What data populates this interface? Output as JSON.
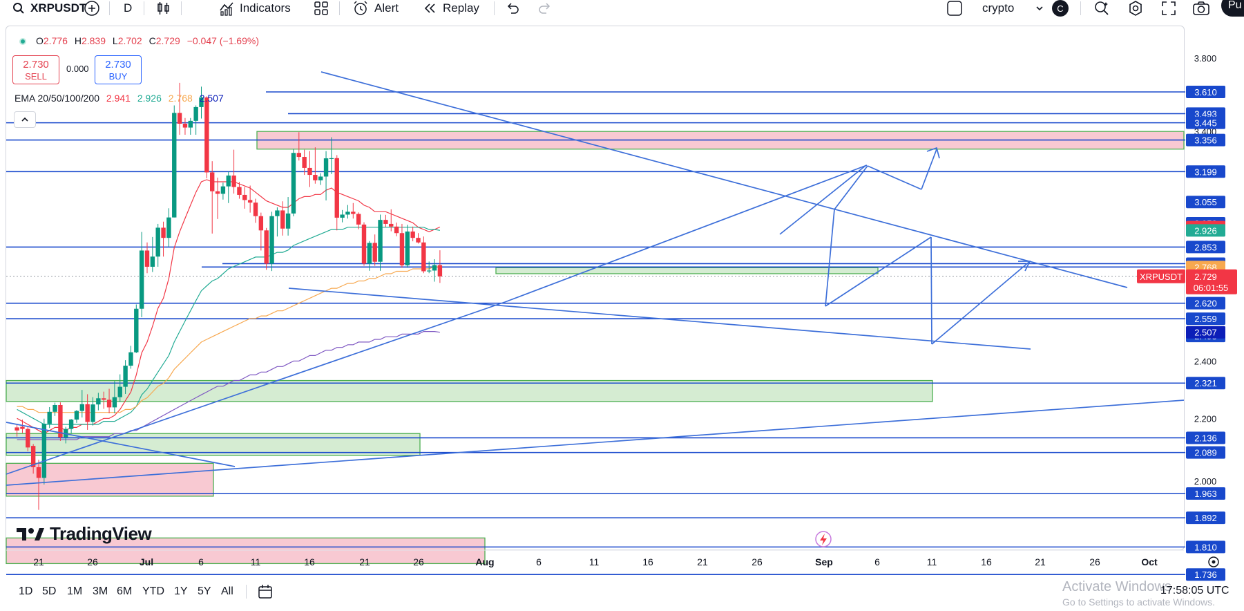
{
  "toolbar": {
    "symbol": "XRPUSDT",
    "interval": "D",
    "indicators_label": "Indicators",
    "alert_label": "Alert",
    "replay_label": "Replay",
    "layout_name": "crypto",
    "layout_badge": "C",
    "publish_label": "Pu"
  },
  "legend": {
    "o_label": "O",
    "o_value": "2.776",
    "h_label": "H",
    "h_value": "2.839",
    "l_label": "L",
    "l_value": "2.702",
    "c_label": "C",
    "c_value": "2.729",
    "change": "−0.047 (−1.69%)",
    "ema_label": "EMA 20/50/100/200",
    "ema20": "2.941",
    "ema50": "2.926",
    "ema100": "2.768",
    "ema200": "2.507"
  },
  "trade": {
    "sell_price": "2.730",
    "sell_label": "SELL",
    "buy_price": "2.730",
    "buy_label": "BUY",
    "spread": "0.000"
  },
  "colors": {
    "up": "#089981",
    "down": "#f23645",
    "level_line": "#1848cc",
    "drawing": "#3d6fd9",
    "ema20": "#f23645",
    "ema50": "#22ab94",
    "ema100": "#f7a84f",
    "ema200": "#7e57c2",
    "zone_red_fill": "#f8c9d2",
    "zone_green_fill": "#d5ecd2",
    "zone_border": "#4caf50"
  },
  "chart_data": {
    "type": "candlestick",
    "symbol": "XRPUSDT",
    "interval": "D",
    "ylim": [
      1.7,
      3.86
    ],
    "scale": "log",
    "price_axis_ticks": [
      "3.800",
      "3.400",
      "2.400",
      "2.200",
      "2.000"
    ],
    "time_axis_labels": [
      "21",
      "26",
      "Jul",
      "6",
      "11",
      "16",
      "21",
      "26",
      "Aug",
      "6",
      "11",
      "16",
      "21",
      "26",
      "Sep",
      "6",
      "11",
      "16",
      "21",
      "26",
      "Oct"
    ],
    "candles": [
      {
        "o": 2.17,
        "h": 2.182,
        "l": 2.14,
        "c": 2.16
      },
      {
        "o": 2.172,
        "h": 2.196,
        "l": 2.152,
        "c": 2.165
      },
      {
        "o": 2.165,
        "h": 2.172,
        "l": 2.093,
        "c": 2.105
      },
      {
        "o": 2.11,
        "h": 2.116,
        "l": 2.023,
        "c": 2.043
      },
      {
        "o": 2.043,
        "h": 2.066,
        "l": 1.915,
        "c": 2.01
      },
      {
        "o": 2.01,
        "h": 2.199,
        "l": 1.99,
        "c": 2.182
      },
      {
        "o": 2.182,
        "h": 2.238,
        "l": 2.168,
        "c": 2.222
      },
      {
        "o": 2.222,
        "h": 2.253,
        "l": 2.208,
        "c": 2.245
      },
      {
        "o": 2.245,
        "h": 2.254,
        "l": 2.126,
        "c": 2.138
      },
      {
        "o": 2.138,
        "h": 2.172,
        "l": 2.118,
        "c": 2.165
      },
      {
        "o": 2.165,
        "h": 2.198,
        "l": 2.151,
        "c": 2.196
      },
      {
        "o": 2.196,
        "h": 2.228,
        "l": 2.185,
        "c": 2.225
      },
      {
        "o": 2.225,
        "h": 2.297,
        "l": 2.203,
        "c": 2.248
      },
      {
        "o": 2.248,
        "h": 2.282,
        "l": 2.162,
        "c": 2.188
      },
      {
        "o": 2.188,
        "h": 2.272,
        "l": 2.176,
        "c": 2.247
      },
      {
        "o": 2.247,
        "h": 2.287,
        "l": 2.227,
        "c": 2.268
      },
      {
        "o": 2.268,
        "h": 2.291,
        "l": 2.232,
        "c": 2.263
      },
      {
        "o": 2.263,
        "h": 2.301,
        "l": 2.217,
        "c": 2.237
      },
      {
        "o": 2.237,
        "h": 2.328,
        "l": 2.217,
        "c": 2.272
      },
      {
        "o": 2.272,
        "h": 2.352,
        "l": 2.255,
        "c": 2.308
      },
      {
        "o": 2.308,
        "h": 2.403,
        "l": 2.283,
        "c": 2.383
      },
      {
        "o": 2.383,
        "h": 2.456,
        "l": 2.372,
        "c": 2.432
      },
      {
        "o": 2.432,
        "h": 2.615,
        "l": 2.429,
        "c": 2.598
      },
      {
        "o": 2.598,
        "h": 2.919,
        "l": 2.565,
        "c": 2.838
      },
      {
        "o": 2.838,
        "h": 2.873,
        "l": 2.742,
        "c": 2.769
      },
      {
        "o": 2.769,
        "h": 2.897,
        "l": 2.747,
        "c": 2.812
      },
      {
        "o": 2.812,
        "h": 2.955,
        "l": 2.769,
        "c": 2.938
      },
      {
        "o": 2.938,
        "h": 2.965,
        "l": 2.812,
        "c": 2.893
      },
      {
        "o": 2.893,
        "h": 3.026,
        "l": 2.855,
        "c": 2.984
      },
      {
        "o": 2.984,
        "h": 3.537,
        "l": 2.984,
        "c": 3.497
      },
      {
        "o": 3.497,
        "h": 3.66,
        "l": 3.383,
        "c": 3.44
      },
      {
        "o": 3.44,
        "h": 3.47,
        "l": 3.383,
        "c": 3.42
      },
      {
        "o": 3.42,
        "h": 3.47,
        "l": 3.383,
        "c": 3.455
      },
      {
        "o": 3.455,
        "h": 3.537,
        "l": 3.383,
        "c": 3.528
      },
      {
        "o": 3.528,
        "h": 3.639,
        "l": 3.467,
        "c": 3.58
      },
      {
        "o": 3.58,
        "h": 3.586,
        "l": 3.167,
        "c": 3.195
      },
      {
        "o": 3.195,
        "h": 3.25,
        "l": 2.912,
        "c": 3.105
      },
      {
        "o": 3.105,
        "h": 3.17,
        "l": 2.977,
        "c": 3.093
      },
      {
        "o": 3.093,
        "h": 3.146,
        "l": 3.066,
        "c": 3.128
      },
      {
        "o": 3.128,
        "h": 3.198,
        "l": 3.05,
        "c": 3.18
      },
      {
        "o": 3.18,
        "h": 3.307,
        "l": 3.094,
        "c": 3.125
      },
      {
        "o": 3.125,
        "h": 3.149,
        "l": 3.07,
        "c": 3.088
      },
      {
        "o": 3.088,
        "h": 3.125,
        "l": 3.024,
        "c": 3.064
      },
      {
        "o": 3.064,
        "h": 3.132,
        "l": 3.006,
        "c": 3.052
      },
      {
        "o": 3.052,
        "h": 3.07,
        "l": 2.96,
        "c": 2.99
      },
      {
        "o": 2.99,
        "h": 3.006,
        "l": 2.838,
        "c": 2.926
      },
      {
        "o": 2.926,
        "h": 2.937,
        "l": 2.756,
        "c": 2.782
      },
      {
        "o": 2.782,
        "h": 3.01,
        "l": 2.751,
        "c": 2.99
      },
      {
        "o": 2.99,
        "h": 3.03,
        "l": 2.899,
        "c": 3.016
      },
      {
        "o": 3.016,
        "h": 3.058,
        "l": 2.903,
        "c": 2.934
      },
      {
        "o": 2.934,
        "h": 3.078,
        "l": 2.903,
        "c": 3.002
      },
      {
        "o": 3.002,
        "h": 3.311,
        "l": 2.989,
        "c": 3.291
      },
      {
        "o": 3.291,
        "h": 3.396,
        "l": 3.253,
        "c": 3.271
      },
      {
        "o": 3.271,
        "h": 3.307,
        "l": 3.183,
        "c": 3.217
      },
      {
        "o": 3.217,
        "h": 3.3,
        "l": 3.125,
        "c": 3.183
      },
      {
        "o": 3.183,
        "h": 3.319,
        "l": 3.141,
        "c": 3.157
      },
      {
        "o": 3.157,
        "h": 3.191,
        "l": 3.135,
        "c": 3.175
      },
      {
        "o": 3.175,
        "h": 3.3,
        "l": 3.062,
        "c": 3.264
      },
      {
        "o": 3.264,
        "h": 3.37,
        "l": 3.187,
        "c": 3.265
      },
      {
        "o": 3.265,
        "h": 3.28,
        "l": 2.926,
        "c": 2.983
      },
      {
        "o": 2.983,
        "h": 3.018,
        "l": 2.962,
        "c": 2.997
      },
      {
        "o": 2.997,
        "h": 3.041,
        "l": 2.979,
        "c": 3.01
      },
      {
        "o": 3.01,
        "h": 3.05,
        "l": 2.979,
        "c": 3.0
      },
      {
        "o": 3.0,
        "h": 3.007,
        "l": 2.931,
        "c": 2.952
      },
      {
        "o": 2.952,
        "h": 2.962,
        "l": 2.773,
        "c": 2.782
      },
      {
        "o": 2.782,
        "h": 2.879,
        "l": 2.752,
        "c": 2.871
      },
      {
        "o": 2.871,
        "h": 2.908,
        "l": 2.773,
        "c": 2.79
      },
      {
        "o": 2.79,
        "h": 2.997,
        "l": 2.752,
        "c": 2.973
      },
      {
        "o": 2.973,
        "h": 2.996,
        "l": 2.941,
        "c": 2.955
      },
      {
        "o": 2.955,
        "h": 3.021,
        "l": 2.922,
        "c": 2.943
      },
      {
        "o": 2.943,
        "h": 2.961,
        "l": 2.9,
        "c": 2.914
      },
      {
        "o": 2.914,
        "h": 2.955,
        "l": 2.765,
        "c": 2.775
      },
      {
        "o": 2.775,
        "h": 2.951,
        "l": 2.765,
        "c": 2.921
      },
      {
        "o": 2.921,
        "h": 2.943,
        "l": 2.878,
        "c": 2.893
      },
      {
        "o": 2.893,
        "h": 2.914,
        "l": 2.868,
        "c": 2.873
      },
      {
        "o": 2.873,
        "h": 2.899,
        "l": 2.742,
        "c": 2.75
      },
      {
        "o": 2.75,
        "h": 2.791,
        "l": 2.742,
        "c": 2.753
      },
      {
        "o": 2.753,
        "h": 2.801,
        "l": 2.707,
        "c": 2.776
      },
      {
        "o": 2.776,
        "h": 2.839,
        "l": 2.702,
        "c": 2.729
      }
    ],
    "ema": {
      "ema20": [
        2.2,
        2.19,
        2.18,
        2.17,
        2.16,
        2.15,
        2.16,
        2.17,
        2.17,
        2.16,
        2.17,
        2.17,
        2.18,
        2.18,
        2.18,
        2.19,
        2.2,
        2.2,
        2.21,
        2.23,
        2.26,
        2.29,
        2.35,
        2.43,
        2.47,
        2.53,
        2.6,
        2.64,
        2.72,
        2.85,
        2.92,
        2.98,
        3.04,
        3.1,
        3.15,
        3.16,
        3.15,
        3.15,
        3.15,
        3.15,
        3.15,
        3.14,
        3.13,
        3.12,
        3.1,
        3.08,
        3.06,
        3.05,
        3.04,
        3.03,
        3.03,
        3.05,
        3.07,
        3.08,
        3.08,
        3.09,
        3.09,
        3.11,
        3.12,
        3.1,
        3.09,
        3.08,
        3.07,
        3.06,
        3.04,
        3.03,
        3.01,
        3.01,
        3.01,
        3.0,
        2.99,
        2.98,
        2.97,
        2.96,
        2.94,
        2.93,
        2.92,
        2.93,
        2.941
      ],
      "ema50": [
        2.23,
        2.22,
        2.21,
        2.2,
        2.19,
        2.18,
        2.18,
        2.18,
        2.18,
        2.18,
        2.18,
        2.18,
        2.18,
        2.18,
        2.18,
        2.18,
        2.19,
        2.19,
        2.19,
        2.2,
        2.21,
        2.22,
        2.24,
        2.28,
        2.3,
        2.33,
        2.36,
        2.39,
        2.42,
        2.47,
        2.51,
        2.55,
        2.59,
        2.63,
        2.67,
        2.69,
        2.71,
        2.72,
        2.74,
        2.76,
        2.77,
        2.78,
        2.79,
        2.8,
        2.81,
        2.81,
        2.81,
        2.82,
        2.83,
        2.83,
        2.84,
        2.86,
        2.87,
        2.88,
        2.89,
        2.9,
        2.91,
        2.92,
        2.93,
        2.93,
        2.93,
        2.94,
        2.94,
        2.94,
        2.94,
        2.94,
        2.94,
        2.94,
        2.94,
        2.94,
        2.94,
        2.94,
        2.94,
        2.94,
        2.94,
        2.94,
        2.93,
        2.93,
        2.926
      ],
      "ema100": [
        2.24,
        2.24,
        2.23,
        2.23,
        2.22,
        2.22,
        2.22,
        2.22,
        2.22,
        2.22,
        2.22,
        2.22,
        2.22,
        2.22,
        2.22,
        2.22,
        2.22,
        2.22,
        2.22,
        2.22,
        2.23,
        2.23,
        2.24,
        2.26,
        2.27,
        2.29,
        2.31,
        2.32,
        2.34,
        2.37,
        2.39,
        2.41,
        2.43,
        2.45,
        2.47,
        2.48,
        2.49,
        2.5,
        2.51,
        2.52,
        2.53,
        2.54,
        2.55,
        2.56,
        2.56,
        2.57,
        2.57,
        2.58,
        2.59,
        2.59,
        2.6,
        2.61,
        2.62,
        2.63,
        2.64,
        2.65,
        2.66,
        2.67,
        2.68,
        2.68,
        2.69,
        2.7,
        2.7,
        2.71,
        2.71,
        2.72,
        2.72,
        2.73,
        2.74,
        2.74,
        2.75,
        2.75,
        2.75,
        2.76,
        2.76,
        2.76,
        2.76,
        2.77,
        2.768
      ],
      "ema200": [
        2.13,
        2.13,
        2.13,
        2.13,
        2.13,
        2.13,
        2.13,
        2.13,
        2.13,
        2.13,
        2.13,
        2.13,
        2.14,
        2.14,
        2.14,
        2.14,
        2.14,
        2.14,
        2.15,
        2.15,
        2.15,
        2.16,
        2.16,
        2.17,
        2.18,
        2.19,
        2.2,
        2.21,
        2.22,
        2.23,
        2.24,
        2.25,
        2.26,
        2.27,
        2.28,
        2.29,
        2.3,
        2.31,
        2.31,
        2.32,
        2.33,
        2.33,
        2.34,
        2.35,
        2.35,
        2.36,
        2.36,
        2.37,
        2.38,
        2.38,
        2.39,
        2.4,
        2.4,
        2.41,
        2.42,
        2.42,
        2.43,
        2.44,
        2.44,
        2.45,
        2.45,
        2.46,
        2.46,
        2.47,
        2.47,
        2.47,
        2.48,
        2.48,
        2.49,
        2.49,
        2.49,
        2.5,
        2.5,
        2.5,
        2.5,
        2.51,
        2.51,
        2.51,
        2.507
      ]
    },
    "levels": [
      {
        "price": "3.610",
        "color": "#1848cc"
      },
      {
        "price": "3.493",
        "color": "#1848cc"
      },
      {
        "price": "3.445",
        "color": "#1848cc"
      },
      {
        "price": "3.356",
        "color": "#1848cc"
      },
      {
        "price": "3.199",
        "color": "#1848cc"
      },
      {
        "price": "3.055",
        "color": "#1848cc"
      },
      {
        "price": "2.958",
        "color": "#1848cc"
      },
      {
        "price": "2.853",
        "color": "#1848cc"
      },
      {
        "price": "2.782",
        "color": "#1848cc"
      },
      {
        "price": "2.620",
        "color": "#1848cc"
      },
      {
        "price": "2.559",
        "color": "#1848cc"
      },
      {
        "price": "2.493",
        "color": "#1848cc"
      },
      {
        "price": "2.321",
        "color": "#1848cc"
      },
      {
        "price": "2.136",
        "color": "#1848cc"
      },
      {
        "price": "2.089",
        "color": "#1848cc"
      },
      {
        "price": "1.963",
        "color": "#1848cc"
      },
      {
        "price": "1.892",
        "color": "#1848cc"
      },
      {
        "price": "1.810",
        "color": "#1848cc"
      },
      {
        "price": "1.736",
        "color": "#1848cc"
      }
    ],
    "ema_labels": [
      {
        "price": "2.941",
        "color": "#f23645"
      },
      {
        "price": "2.926",
        "color": "#22ab94"
      },
      {
        "price": "2.768",
        "color": "#f7a84f"
      },
      {
        "price": "2.507",
        "color": "#0c1eb8"
      }
    ],
    "last_price": {
      "symbol": "XRPUSDT",
      "price": "2.729",
      "countdown": "06:01:55",
      "color": "#f23645"
    }
  },
  "periods": [
    "1D",
    "5D",
    "1M",
    "3M",
    "6M",
    "YTD",
    "1Y",
    "5Y",
    "All"
  ],
  "watermark": {
    "line1": "Activate Windows",
    "line2": "Go to Settings to activate Windows."
  },
  "clock": "17:58:05 UTC",
  "brand": "TradingView"
}
